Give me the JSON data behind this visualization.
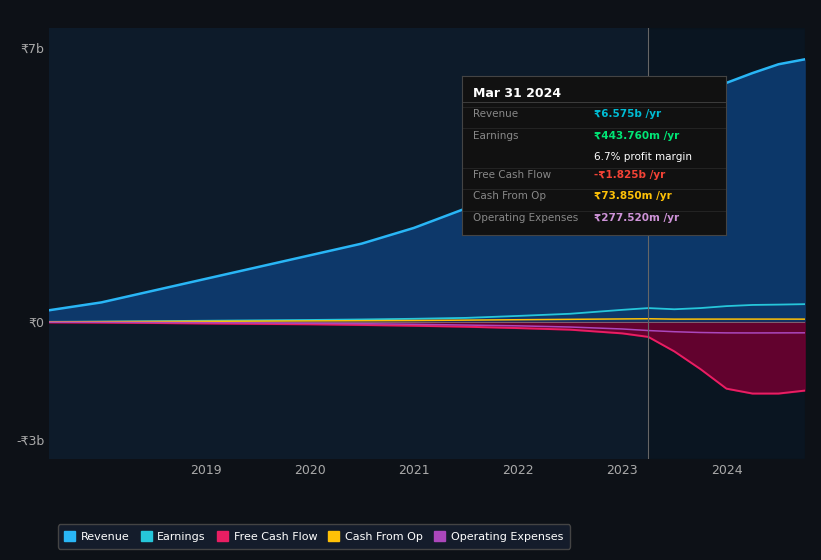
{
  "bg_color": "#0d1117",
  "plot_bg_color": "#0d1b2a",
  "xlim": [
    2017.5,
    2024.75
  ],
  "ylim": [
    -3500000000,
    7500000000
  ],
  "yticks": [
    -3000000000,
    0,
    7000000000
  ],
  "ytick_labels": [
    "-₹3b",
    "₹0",
    "₹7b"
  ],
  "xticks": [
    2019,
    2020,
    2021,
    2022,
    2023,
    2024
  ],
  "separator_x": 2023.25,
  "legend_items": [
    {
      "label": "Revenue",
      "color": "#29b6f6"
    },
    {
      "label": "Earnings",
      "color": "#26c6da"
    },
    {
      "label": "Free Cash Flow",
      "color": "#e91e63"
    },
    {
      "label": "Cash From Op",
      "color": "#ffc107"
    },
    {
      "label": "Operating Expenses",
      "color": "#ab47bc"
    }
  ],
  "infobox": {
    "date": "Mar 31 2024",
    "rows": [
      {
        "label": "Revenue",
        "value": "₹6.575b /yr",
        "value_color": "#00bcd4"
      },
      {
        "label": "Earnings",
        "value": "₹443.760m /yr",
        "value_color": "#00e676"
      },
      {
        "label": "",
        "value": "6.7% profit margin",
        "value_color": "#ffffff"
      },
      {
        "label": "Free Cash Flow",
        "value": "-₹1.825b /yr",
        "value_color": "#f44336"
      },
      {
        "label": "Cash From Op",
        "value": "₹73.850m /yr",
        "value_color": "#ffc107"
      },
      {
        "label": "Operating Expenses",
        "value": "₹277.520m /yr",
        "value_color": "#ce93d8"
      }
    ]
  },
  "series": {
    "x": [
      2017.5,
      2018.0,
      2018.5,
      2019.0,
      2019.5,
      2020.0,
      2020.5,
      2021.0,
      2021.5,
      2022.0,
      2022.5,
      2023.0,
      2023.25,
      2023.5,
      2023.75,
      2024.0,
      2024.25,
      2024.5,
      2024.75
    ],
    "revenue": [
      300000000,
      500000000,
      800000000,
      1100000000,
      1400000000,
      1700000000,
      2000000000,
      2400000000,
      2900000000,
      3500000000,
      4200000000,
      5200000000,
      5700000000,
      5400000000,
      5700000000,
      6100000000,
      6350000000,
      6575000000,
      6700000000
    ],
    "earnings": [
      5000000,
      12000000,
      22000000,
      32000000,
      42000000,
      52000000,
      65000000,
      82000000,
      105000000,
      155000000,
      210000000,
      310000000,
      355000000,
      325000000,
      355000000,
      405000000,
      435000000,
      443760000,
      455000000
    ],
    "free_cash_flow": [
      -8000000,
      -15000000,
      -25000000,
      -38000000,
      -48000000,
      -58000000,
      -75000000,
      -95000000,
      -120000000,
      -155000000,
      -195000000,
      -290000000,
      -380000000,
      -750000000,
      -1200000000,
      -1700000000,
      -1825000000,
      -1825000000,
      -1750000000
    ],
    "cash_from_op": [
      4000000,
      8000000,
      13000000,
      18000000,
      23000000,
      28000000,
      33000000,
      38000000,
      48000000,
      58000000,
      68000000,
      78000000,
      83000000,
      73000000,
      73850000,
      73850000,
      74000000,
      73850000,
      73000000
    ],
    "operating_expenses": [
      -4000000,
      -7000000,
      -11000000,
      -17000000,
      -24000000,
      -33000000,
      -43000000,
      -58000000,
      -78000000,
      -98000000,
      -128000000,
      -178000000,
      -218000000,
      -248000000,
      -268000000,
      -277520000,
      -279000000,
      -277520000,
      -276000000
    ]
  }
}
